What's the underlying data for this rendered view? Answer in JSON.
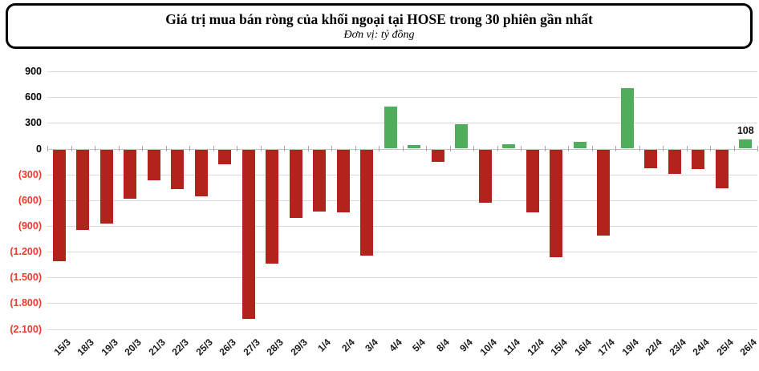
{
  "header": {
    "title": "Giá trị mua bán ròng của khối ngoại tại HOSE trong 30 phiên gần nhất",
    "subtitle": "Đơn vị: tỷ đồng"
  },
  "chart_data": {
    "type": "bar",
    "title": "Giá trị mua bán ròng của khối ngoại tại HOSE trong 30 phiên gần nhất",
    "subtitle": "Đơn vị: tỷ đồng",
    "xlabel": "",
    "ylabel": "tỷ đồng",
    "ylim": [
      -2100,
      900
    ],
    "grid": true,
    "legend": false,
    "categories": [
      "15/3",
      "18/3",
      "19/3",
      "20/3",
      "21/3",
      "22/3",
      "25/3",
      "26/3",
      "27/3",
      "28/3",
      "29/3",
      "1/4",
      "2/4",
      "3/4",
      "4/4",
      "5/4",
      "8/4",
      "9/4",
      "10/4",
      "11/4",
      "12/4",
      "15/4",
      "16/4",
      "17/4",
      "19/4",
      "22/4",
      "23/4",
      "24/4",
      "25/4",
      "26/4"
    ],
    "values": [
      -1300,
      -940,
      -860,
      -575,
      -360,
      -465,
      -545,
      -175,
      -1970,
      -1330,
      -795,
      -725,
      -730,
      -1240,
      490,
      40,
      -145,
      280,
      -620,
      55,
      -730,
      -1255,
      80,
      -1000,
      700,
      -220,
      -285,
      -230,
      -455,
      108
    ],
    "y_tick_values": [
      900,
      600,
      300,
      0,
      -300,
      -600,
      -900,
      -1200,
      -1500,
      -1800,
      -2100
    ],
    "y_tick_labels": [
      "900",
      "600",
      "300",
      "0",
      "(300)",
      "(600)",
      "(900)",
      "(1.200)",
      "(1.500)",
      "(1.800)",
      "(2.100)"
    ],
    "annotations": [
      {
        "category": "26/4",
        "text": "108"
      }
    ],
    "colors": {
      "positive_bar": "#4fad5b",
      "negative_bar": "#b2241b",
      "positive_tick_label": "#000000",
      "negative_tick_label": "#ee3a2d",
      "gridline": "#d9d9d9",
      "zero_line": "#c2c2c2",
      "axis_tick": "#a6a6a6",
      "category_label": "#1a1a1a",
      "data_label": "#111111"
    }
  }
}
